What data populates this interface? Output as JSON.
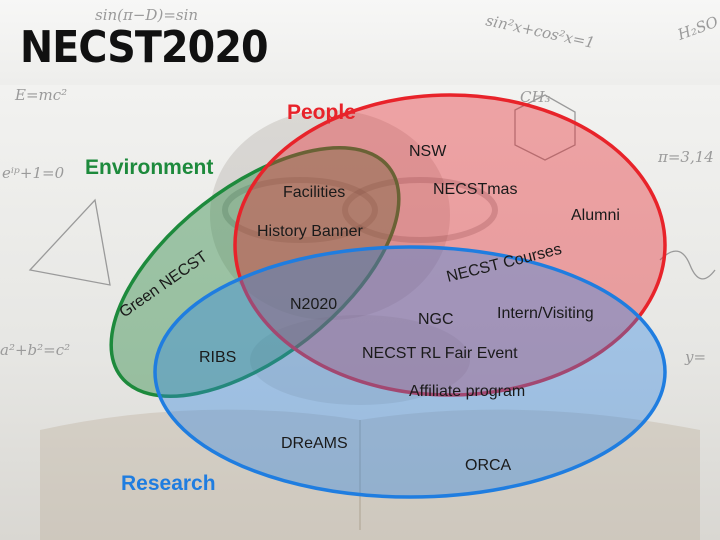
{
  "title": "NECST2020",
  "sets": {
    "people": {
      "label": "People",
      "color": "#e8232a"
    },
    "environment": {
      "label": "Environment",
      "color": "#1d8a3c"
    },
    "research": {
      "label": "Research",
      "color": "#1f7de0"
    }
  },
  "items": {
    "nsw": "NSW",
    "necstmas": "NECSTmas",
    "alumni": "Alumni",
    "facilities": "Facilities",
    "history_banner": "History Banner",
    "green_necst": "Green NECST",
    "necst_courses": "NECST Courses",
    "n2020": "N2020",
    "ngc": "NGC",
    "intern_visiting": "Intern/Visiting",
    "ribs": "RIBS",
    "rl_fair": "NECST RL Fair Event",
    "affiliate": "Affiliate program",
    "dreams": "DReAMS",
    "orca": "ORCA"
  },
  "background_doodles": {
    "eq1": "sin(π−D)=sin",
    "eq2": "sin²x+cos²x=1",
    "eq3": "E=mc²",
    "eq4": "eⁱᵖ+1=0",
    "eq5": "π=3,14",
    "eq6": "a²+b²=c²",
    "eq7": "y=",
    "eq8": "H₂SO",
    "eq9": "CH₃"
  }
}
